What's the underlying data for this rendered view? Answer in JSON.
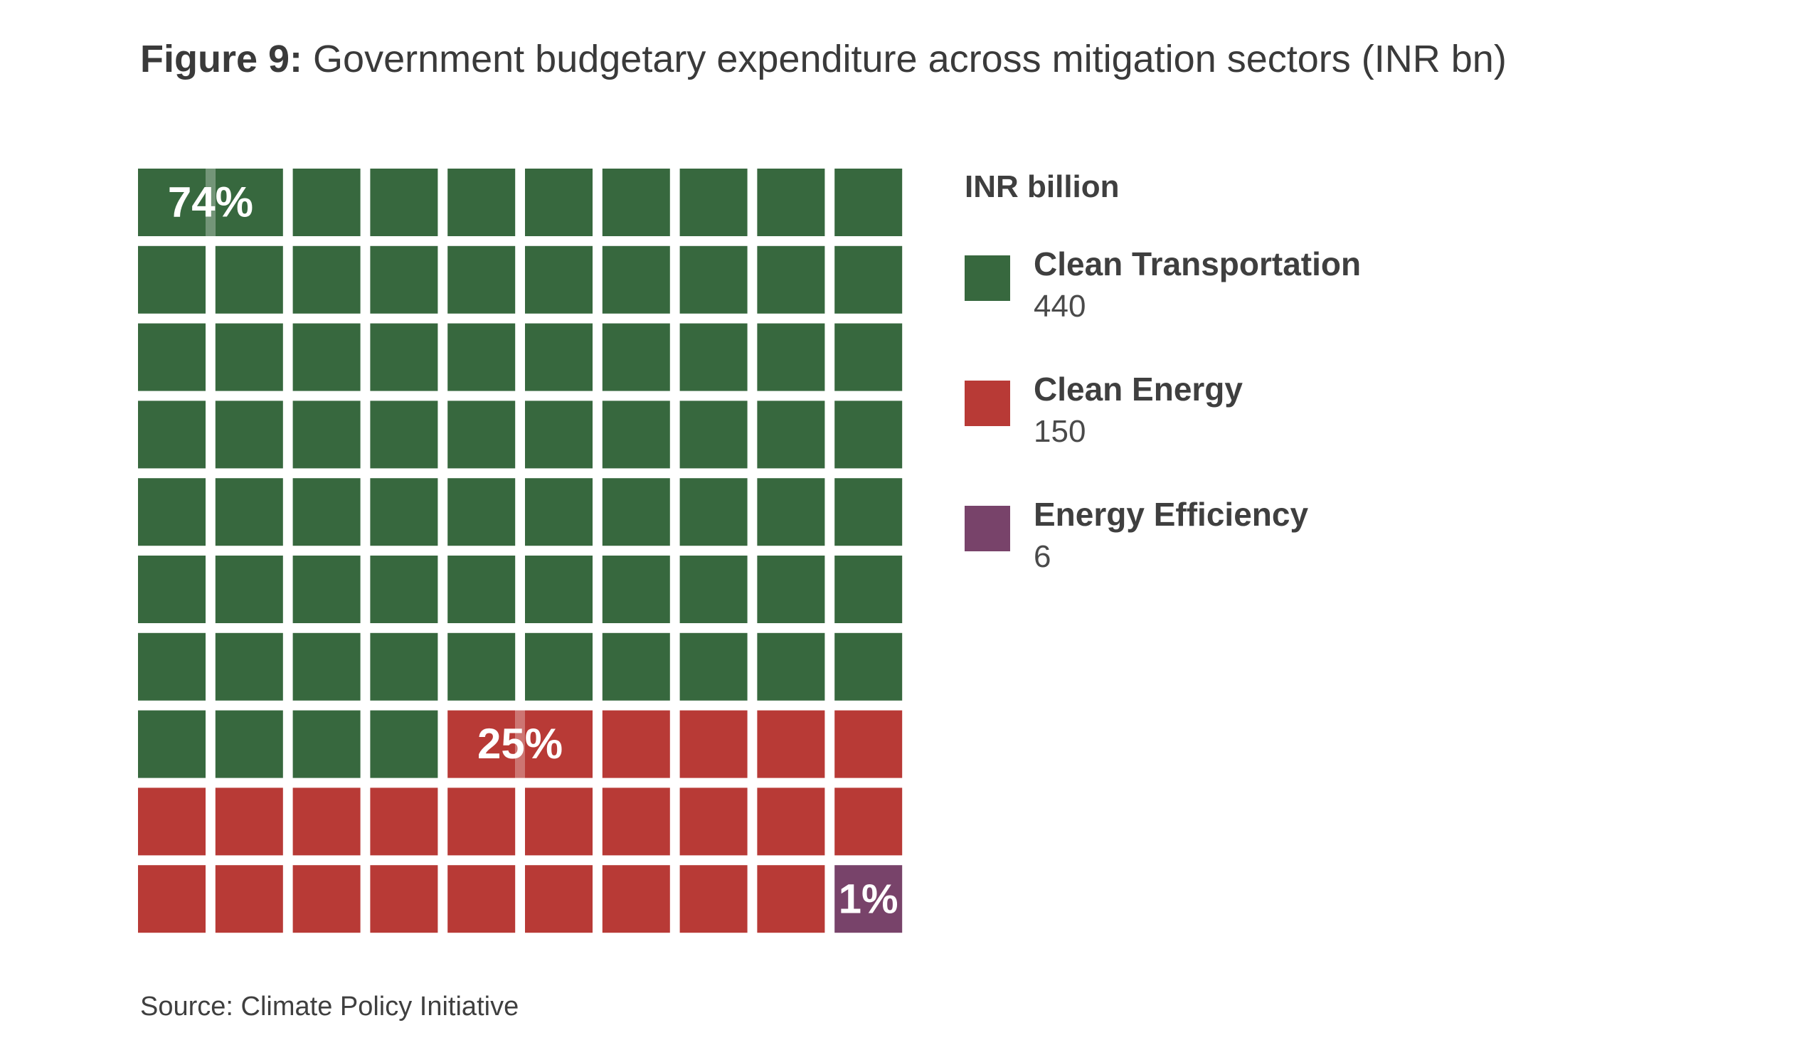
{
  "title": {
    "figure_label": "Figure 9:",
    "text": "Government budgetary expenditure across mitigation sectors (INR bn)"
  },
  "legend": {
    "heading": "INR billion",
    "items": [
      {
        "label": "Clean Transportation",
        "value": "440",
        "color": "#37683e"
      },
      {
        "label": "Clean Energy",
        "value": "150",
        "color": "#b83a36"
      },
      {
        "label": "Energy Efficiency",
        "value": "6",
        "color": "#78436a"
      }
    ]
  },
  "source": "Source: Climate Policy Initiative",
  "chart_data": {
    "type": "waffle",
    "grid": {
      "rows": 10,
      "cols": 10
    },
    "unit": "INR billion",
    "categories": [
      "Clean Transportation",
      "Clean Energy",
      "Energy Efficiency"
    ],
    "values": [
      440,
      150,
      6
    ],
    "squares": [
      74,
      25,
      1
    ],
    "data_labels": [
      "74%",
      "25%",
      "1%"
    ],
    "colors": [
      "#37683e",
      "#b83a36",
      "#78436a"
    ],
    "legend_position": "right"
  }
}
